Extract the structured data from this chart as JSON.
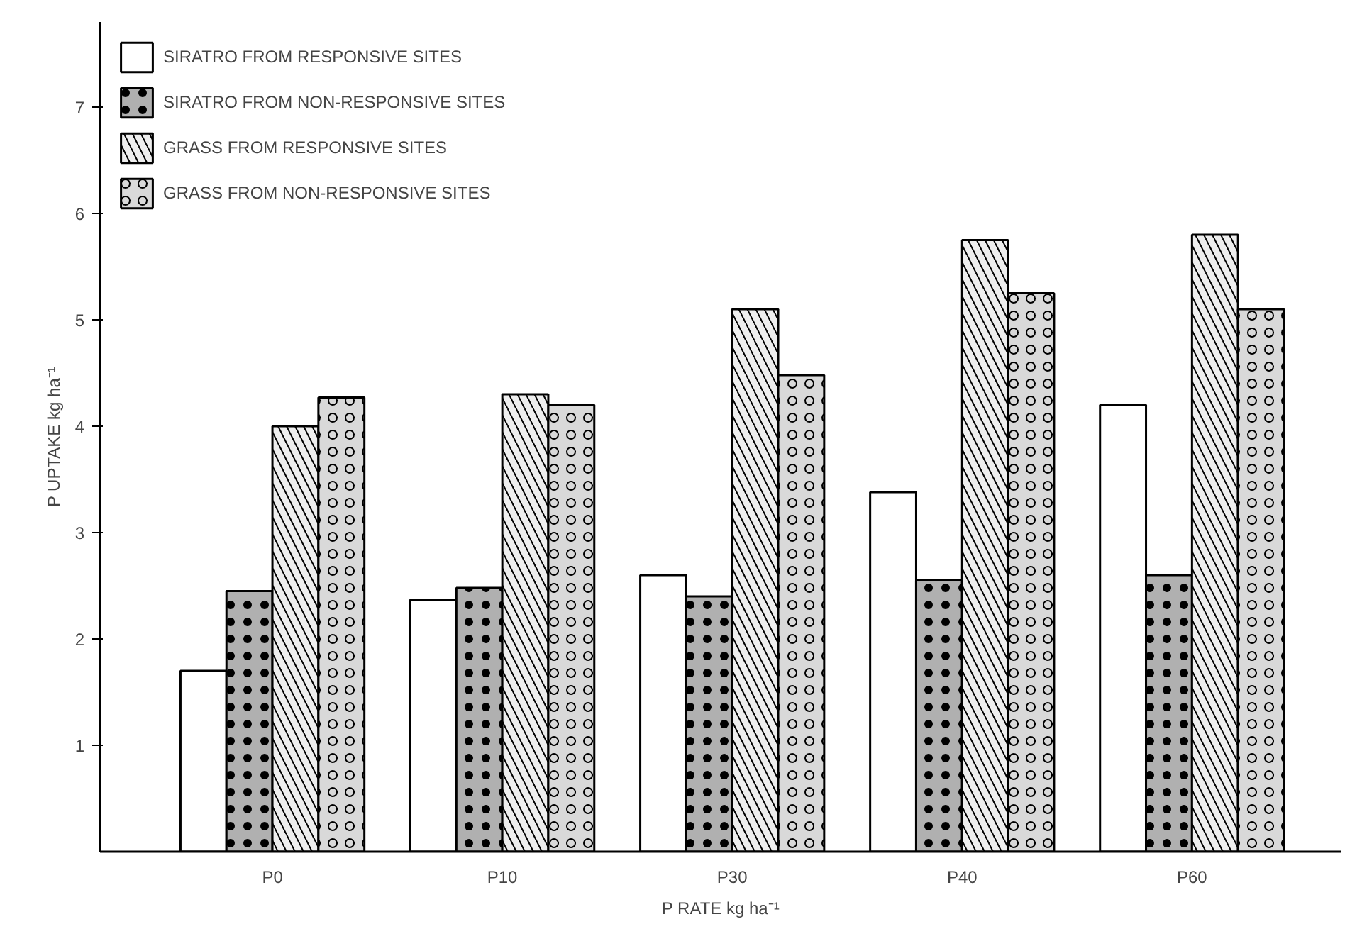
{
  "chart_data": {
    "type": "bar",
    "xlabel": "P RATE kg ha⁻¹",
    "ylabel": "P UPTAKE kg ha⁻¹",
    "categories": [
      "P0",
      "P10",
      "P30",
      "P40",
      "P60"
    ],
    "series": [
      {
        "name": "SIRATRO FROM RESPONSIVE SITES",
        "color": "#ffffff",
        "values": [
          1.7,
          2.37,
          2.6,
          3.38,
          4.2
        ]
      },
      {
        "name": "SIRATRO FROM NON-RESPONSIVE SITES",
        "color": "#b0b0b0",
        "values": [
          2.45,
          2.48,
          2.4,
          2.55,
          2.6
        ]
      },
      {
        "name": "GRASS FROM RESPONSIVE SITES",
        "color": "#eeeeee",
        "values": [
          4.0,
          4.3,
          5.1,
          5.75,
          5.8
        ]
      },
      {
        "name": "GRASS FROM NON-RESPONSIVE SITES",
        "color": "#d9d9d9",
        "values": [
          4.27,
          4.2,
          4.48,
          5.25,
          5.1
        ]
      }
    ],
    "ylim": [
      0,
      7.8
    ],
    "yticks": [
      1,
      2,
      3,
      4,
      5,
      6,
      7
    ],
    "grid": false,
    "legend": "top left"
  }
}
